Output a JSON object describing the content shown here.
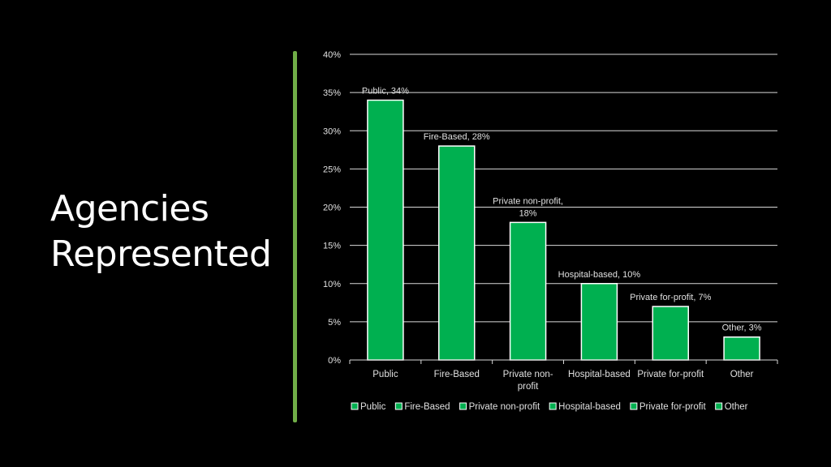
{
  "slide": {
    "title_line1": "Agencies",
    "title_line2": "Represented"
  },
  "colors": {
    "background": "#000000",
    "bar_fill": "#00b050",
    "bar_stroke": "#ffffff",
    "accent_bar": "#70ad47",
    "gridline": "#d9d9d9",
    "text": "#e0e0e0"
  },
  "chart_data": {
    "type": "bar",
    "categories": [
      "Public",
      "Fire-Based",
      "Private non-profit",
      "Hospital-based",
      "Private for-profit",
      "Other"
    ],
    "category_labels": [
      [
        "Public"
      ],
      [
        "Fire-Based"
      ],
      [
        "Private non-",
        "profit"
      ],
      [
        "Hospital-based"
      ],
      [
        "Private for-profit"
      ],
      [
        "Other"
      ]
    ],
    "values": [
      34,
      28,
      18,
      10,
      7,
      3
    ],
    "data_labels": [
      [
        "Public, 34%"
      ],
      [
        "Fire-Based, 28%"
      ],
      [
        "Private non-profit,",
        "18%"
      ],
      [
        "Hospital-based, 10%"
      ],
      [
        "Private for-profit, 7%"
      ],
      [
        "Other, 3%"
      ]
    ],
    "ylim": [
      0,
      40
    ],
    "yticks": [
      "0%",
      "5%",
      "10%",
      "15%",
      "20%",
      "25%",
      "30%",
      "35%",
      "40%"
    ],
    "grid": true,
    "legend_position": "bottom",
    "legend": [
      "Public",
      "Fire-Based",
      "Private non-profit",
      "Hospital-based",
      "Private for-profit",
      "Other"
    ]
  }
}
